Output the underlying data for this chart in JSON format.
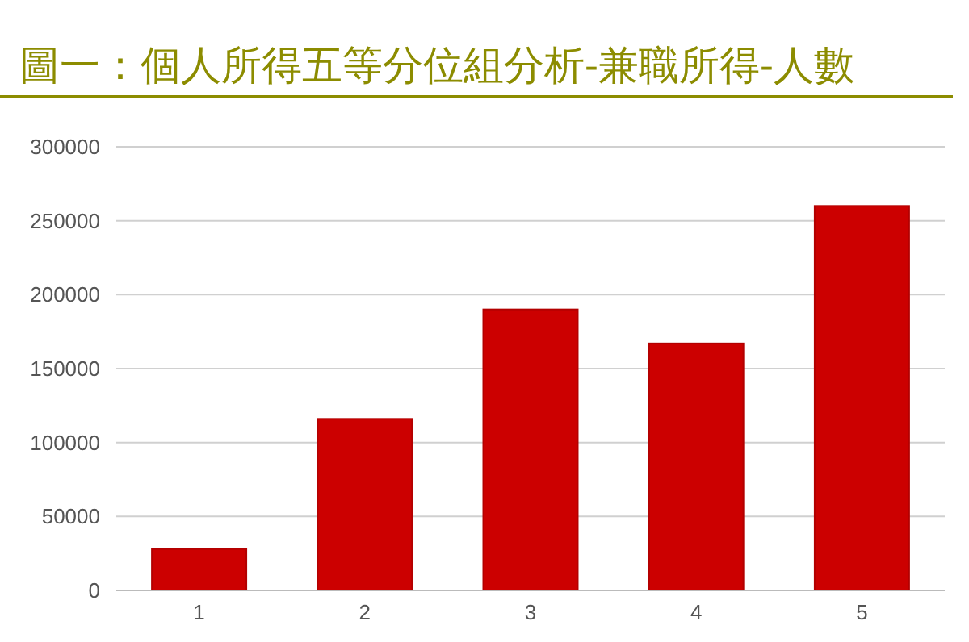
{
  "chart_data": {
    "type": "bar",
    "title": "圖一：個人所得五等分位組分析-兼職所得-人數",
    "categories": [
      "1",
      "2",
      "3",
      "4",
      "5"
    ],
    "values": [
      28000,
      116000,
      190000,
      167000,
      260000
    ],
    "color": "#cc0000",
    "ylim": [
      0,
      300000
    ],
    "yticks": [
      0,
      50000,
      100000,
      150000,
      200000,
      250000,
      300000
    ],
    "grid": "y"
  }
}
